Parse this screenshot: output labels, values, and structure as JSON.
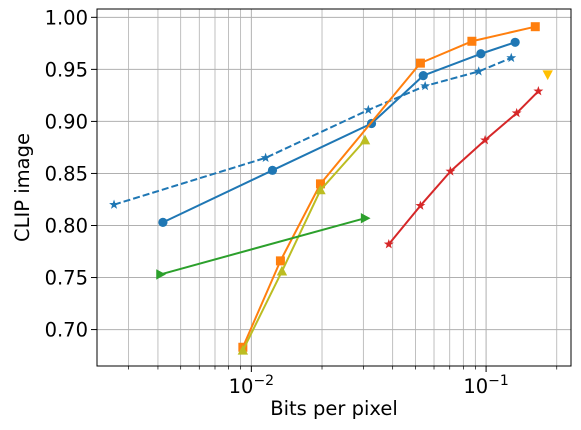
{
  "chart_data": {
    "type": "line",
    "xlabel": "Bits per pixel",
    "ylabel": "CLIP image",
    "xscale": "log",
    "xlim": [
      0.0022,
      0.23
    ],
    "ylim": [
      0.665,
      1.008
    ],
    "grid": true,
    "xticks_major": [
      {
        "value": 0.01,
        "base": "10",
        "exp": "−2"
      },
      {
        "value": 0.1,
        "base": "10",
        "exp": "−1"
      }
    ],
    "yticks": [
      {
        "value": 0.7,
        "label": "0.70"
      },
      {
        "value": 0.75,
        "label": "0.75"
      },
      {
        "value": 0.8,
        "label": "0.80"
      },
      {
        "value": 0.85,
        "label": "0.85"
      },
      {
        "value": 0.9,
        "label": "0.90"
      },
      {
        "value": 0.95,
        "label": "0.95"
      },
      {
        "value": 1.0,
        "label": "1.00"
      }
    ],
    "series": [
      {
        "color": "#1f77b4",
        "linestyle": "dashed",
        "marker": "star",
        "x": [
          0.0026,
          0.0115,
          0.0315,
          0.055,
          0.093,
          0.128
        ],
        "y": [
          0.82,
          0.865,
          0.911,
          0.934,
          0.948,
          0.961
        ]
      },
      {
        "color": "#1f77b4",
        "linestyle": "solid",
        "marker": "circle",
        "x": [
          0.0042,
          0.0123,
          0.0325,
          0.054,
          0.095,
          0.133
        ],
        "y": [
          0.803,
          0.853,
          0.898,
          0.944,
          0.965,
          0.976
        ]
      },
      {
        "color": "#ff7f0e",
        "linestyle": "solid",
        "marker": "square",
        "x": [
          0.0092,
          0.0133,
          0.0197,
          0.0525,
          0.087,
          0.162
        ],
        "y": [
          0.683,
          0.766,
          0.84,
          0.956,
          0.977,
          0.991
        ]
      },
      {
        "color": "#bcbd22",
        "linestyle": "solid",
        "marker": "triangle-up",
        "x": [
          0.0092,
          0.0135,
          0.0197,
          0.0305
        ],
        "y": [
          0.68,
          0.756,
          0.834,
          0.882
        ]
      },
      {
        "color": "#2ca02c",
        "linestyle": "solid",
        "marker": "triangle-right",
        "x": [
          0.0041,
          0.0305
        ],
        "y": [
          0.753,
          0.807
        ]
      },
      {
        "color": "#d62728",
        "linestyle": "solid",
        "marker": "star",
        "x": [
          0.0385,
          0.0525,
          0.0705,
          0.099,
          0.135,
          0.167
        ],
        "y": [
          0.782,
          0.819,
          0.852,
          0.882,
          0.908,
          0.929
        ]
      },
      {
        "color": "#ffbf00",
        "linestyle": "none",
        "marker": "triangle-down",
        "x": [
          0.183
        ],
        "y": [
          0.945
        ]
      }
    ]
  }
}
